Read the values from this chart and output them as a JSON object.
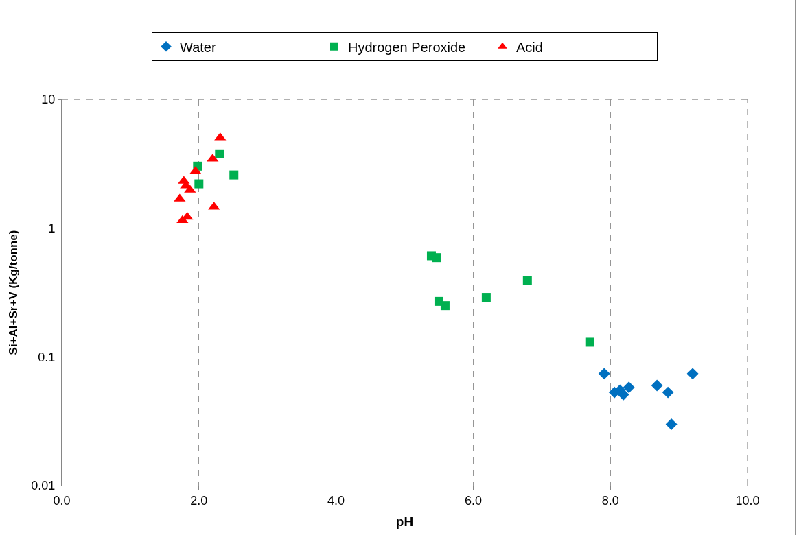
{
  "chart_data": {
    "type": "scatter",
    "xlabel": "pH",
    "ylabel": "Si+Al+Sr+V (Kg/tonne)",
    "log": "y",
    "grid": true,
    "legend": "top",
    "xlim": [
      0,
      10
    ],
    "xticks": [
      {
        "value": 0,
        "label": "0.0"
      },
      {
        "value": 2,
        "label": "2.0"
      },
      {
        "value": 4,
        "label": "4.0"
      },
      {
        "value": 6,
        "label": "6.0"
      },
      {
        "value": 8,
        "label": "8.0"
      },
      {
        "value": 10,
        "label": "10.0"
      }
    ],
    "ylim": [
      0.01,
      10
    ],
    "yticks": [
      0.01,
      0.1,
      1,
      10
    ],
    "series": [
      {
        "name": "Water",
        "color": "#0070c0",
        "marker": "diamond",
        "x": [
          7.91,
          8.06,
          8.14,
          8.19,
          8.27,
          8.68,
          8.84,
          8.89,
          9.2
        ],
        "values": [
          0.074,
          0.053,
          0.055,
          0.051,
          0.058,
          0.06,
          0.053,
          0.03,
          0.074
        ]
      },
      {
        "name": "Hydrogen Peroxide",
        "color": "#00b050",
        "marker": "square",
        "x": [
          5.39,
          5.47,
          5.5,
          5.59,
          6.19,
          6.79,
          7.7,
          2.3,
          1.98,
          2.0,
          2.51
        ],
        "values": [
          0.61,
          0.59,
          0.27,
          0.25,
          0.29,
          0.39,
          0.13,
          3.78,
          3.03,
          2.21,
          2.59
        ]
      },
      {
        "name": "Acid",
        "color": "#ff0000",
        "marker": "triangle",
        "x": [
          2.31,
          2.2,
          1.95,
          1.78,
          1.87,
          1.81,
          1.72,
          2.22,
          1.83,
          1.76
        ],
        "values": [
          5.05,
          3.45,
          2.77,
          2.32,
          1.98,
          2.14,
          1.69,
          1.46,
          1.22,
          1.15
        ]
      }
    ]
  }
}
